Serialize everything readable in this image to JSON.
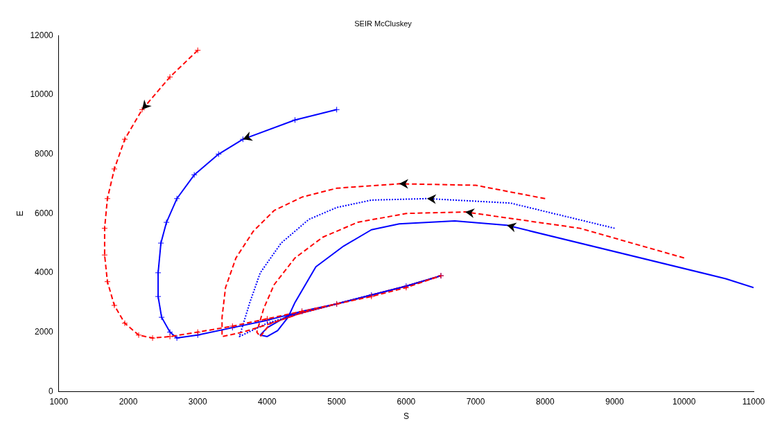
{
  "chart_data": {
    "type": "line",
    "title": "SEIR McCluskey",
    "xlabel": "S",
    "ylabel": "E",
    "xlim": [
      1000,
      11000
    ],
    "ylim": [
      0,
      12000
    ],
    "xticks": [
      1000,
      2000,
      3000,
      4000,
      5000,
      6000,
      7000,
      8000,
      9000,
      10000,
      11000
    ],
    "yticks": [
      0,
      2000,
      4000,
      6000,
      8000,
      10000,
      12000
    ],
    "grid": false,
    "legend": false,
    "series": [
      {
        "color": "#ff0000",
        "line_style": "dashed",
        "marker": "cross",
        "x": [
          3000,
          2600,
          2200,
          1950,
          1800,
          1700,
          1660,
          1660,
          1700,
          1800,
          1950,
          2150,
          2350,
          2600,
          3000,
          3500,
          4000,
          4500,
          5000,
          5500,
          6000,
          6500
        ],
        "values": [
          11500,
          10600,
          9500,
          8500,
          7500,
          6500,
          5500,
          4600,
          3700,
          2900,
          2300,
          1900,
          1800,
          1850,
          2000,
          2200,
          2450,
          2700,
          2950,
          3200,
          3500,
          3900
        ]
      },
      {
        "color": "#0000ff",
        "line_style": "solid",
        "marker": "cross",
        "x": [
          5000,
          4400,
          3650,
          3300,
          2950,
          2700,
          2550,
          2470,
          2430,
          2430,
          2480,
          2600,
          2700,
          3000,
          3500,
          4000,
          4500,
          5000,
          5500,
          6000,
          6500
        ],
        "values": [
          9500,
          9150,
          8500,
          8000,
          7300,
          6500,
          5700,
          5000,
          4000,
          3200,
          2500,
          2000,
          1800,
          1900,
          2150,
          2400,
          2700,
          2950,
          3250,
          3550,
          3900
        ]
      },
      {
        "color": "#ff0000",
        "line_style": "dashed",
        "marker": "none",
        "x": [
          8000,
          7000,
          5900,
          5000,
          4500,
          4100,
          3800,
          3550,
          3400,
          3350,
          3350,
          3650,
          4000,
          4500,
          5000,
          5500,
          6000,
          6500
        ],
        "values": [
          6500,
          6950,
          7000,
          6850,
          6550,
          6100,
          5400,
          4500,
          3500,
          2500,
          1850,
          2000,
          2250,
          2650,
          2950,
          3250,
          3550,
          3900
        ]
      },
      {
        "color": "#0000ff",
        "line_style": "dotted",
        "marker": "none",
        "x": [
          9000,
          7500,
          6300,
          5500,
          5000,
          4600,
          4200,
          3900,
          3750,
          3600,
          4000,
          4500,
          5000,
          5500,
          6000,
          6450
        ],
        "values": [
          5500,
          6350,
          6500,
          6450,
          6200,
          5800,
          5000,
          4000,
          3000,
          1850,
          2300,
          2650,
          2950,
          3250,
          3550,
          3850
        ]
      },
      {
        "color": "#ff0000",
        "line_style": "dashed",
        "marker": "none",
        "x": [
          10000,
          8500,
          6850,
          6000,
          5300,
          4800,
          4400,
          4100,
          3950,
          3850,
          3900,
          4050,
          4500,
          5000,
          5500,
          6000,
          6500
        ],
        "values": [
          4500,
          5500,
          6050,
          6000,
          5700,
          5200,
          4500,
          3600,
          2800,
          2000,
          1850,
          2300,
          2650,
          2950,
          3250,
          3550,
          3900
        ]
      },
      {
        "color": "#0000ff",
        "line_style": "solid",
        "marker": "none",
        "x": [
          11000,
          10600,
          7450,
          6700,
          5900,
          5500,
          5100,
          4700,
          4400,
          4300,
          4150,
          4000,
          3900,
          4000,
          4300,
          4500,
          5000,
          5500,
          6000,
          6500
        ],
        "values": [
          3500,
          3800,
          5600,
          5750,
          5650,
          5450,
          4900,
          4200,
          3000,
          2500,
          2050,
          1850,
          1900,
          2150,
          2550,
          2650,
          2950,
          3250,
          3550,
          3900
        ]
      }
    ]
  }
}
